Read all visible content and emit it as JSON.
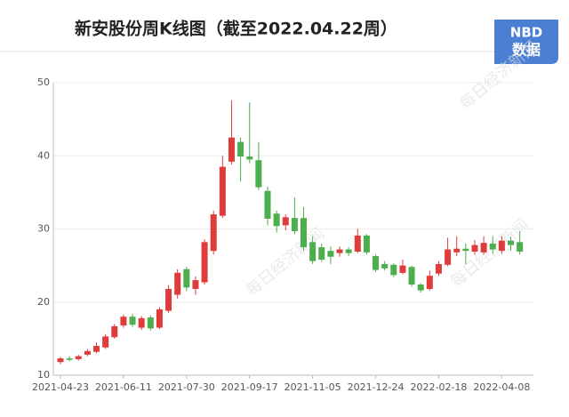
{
  "chart_data": {
    "type": "candlestick",
    "title": "新安股份周K线图（截至2022.04.22周）",
    "logo": {
      "top": "NBD",
      "bottom": "数据"
    },
    "watermark": "每日经济新闻",
    "categories": [
      "2021-04-23",
      null,
      null,
      null,
      null,
      null,
      null,
      "2021-06-11",
      null,
      null,
      null,
      null,
      null,
      null,
      "2021-07-30",
      null,
      null,
      null,
      null,
      null,
      null,
      "2021-09-17",
      null,
      null,
      null,
      null,
      null,
      null,
      "2021-11-05",
      null,
      null,
      null,
      null,
      null,
      null,
      "2021-12-24",
      null,
      null,
      null,
      null,
      null,
      null,
      "2022-02-18",
      null,
      null,
      null,
      null,
      null,
      null,
      "2022-04-08",
      null,
      null
    ],
    "open": [
      11.8,
      12.3,
      12.2,
      12.8,
      13.2,
      13.8,
      15.2,
      16.8,
      18.0,
      16.5,
      17.9,
      16.5,
      18.8,
      21.0,
      24.5,
      21.8,
      22.7,
      27.0,
      31.8,
      39.2,
      41.9,
      39.9,
      39.4,
      35.2,
      32.1,
      30.5,
      31.5,
      31.5,
      28.2,
      27.5,
      27.0,
      26.7,
      27.2,
      26.9,
      29.1,
      26.3,
      25.2,
      25.1,
      24.0,
      24.8,
      22.4,
      21.8,
      23.9,
      25.1,
      26.8,
      27.3,
      26.9,
      26.8,
      28.0,
      27.0,
      28.4,
      28.2
    ],
    "close": [
      12.3,
      12.1,
      12.6,
      13.3,
      14.0,
      15.3,
      16.7,
      18.0,
      16.9,
      17.8,
      16.4,
      19.0,
      21.8,
      24.0,
      22.0,
      23.0,
      28.2,
      32.0,
      38.5,
      42.5,
      39.9,
      39.5,
      35.7,
      31.4,
      30.4,
      31.6,
      29.7,
      27.5,
      25.6,
      25.8,
      26.2,
      27.2,
      26.7,
      29.1,
      26.8,
      24.4,
      24.6,
      23.7,
      25.0,
      22.4,
      21.6,
      23.6,
      25.2,
      27.2,
      27.3,
      27.0,
      27.8,
      28.1,
      27.2,
      28.4,
      27.8,
      26.9
    ],
    "high": [
      12.5,
      12.6,
      12.8,
      13.6,
      14.5,
      15.6,
      17.0,
      18.3,
      18.4,
      18.1,
      18.2,
      19.3,
      22.3,
      24.5,
      24.8,
      23.5,
      28.6,
      32.5,
      40.0,
      47.6,
      42.5,
      47.3,
      41.9,
      35.8,
      32.5,
      32.0,
      34.3,
      33.0,
      29.0,
      28.0,
      27.6,
      27.6,
      27.5,
      30.0,
      29.3,
      26.5,
      25.6,
      25.3,
      25.8,
      25.0,
      22.6,
      24.3,
      25.6,
      28.8,
      29.0,
      28.0,
      28.5,
      29.0,
      29.0,
      29.0,
      28.9,
      29.7
    ],
    "low": [
      11.5,
      11.9,
      12.0,
      12.6,
      13.0,
      13.6,
      15.0,
      16.5,
      16.6,
      16.2,
      16.1,
      16.3,
      18.5,
      20.5,
      21.5,
      21.0,
      22.4,
      26.5,
      31.5,
      38.8,
      36.5,
      39.0,
      35.3,
      30.5,
      29.5,
      29.8,
      29.3,
      27.0,
      25.2,
      25.5,
      25.2,
      26.2,
      26.3,
      26.7,
      26.5,
      24.1,
      24.3,
      23.4,
      23.8,
      22.1,
      21.3,
      21.6,
      23.6,
      24.9,
      26.3,
      25.2,
      26.5,
      26.5,
      26.6,
      26.6,
      27.0,
      26.5
    ],
    "up_color": "#e03b3b",
    "down_color": "#4cae4c",
    "ylim": [
      10,
      50
    ],
    "yticks": [
      10,
      20,
      30,
      40,
      50
    ],
    "grid": true
  }
}
